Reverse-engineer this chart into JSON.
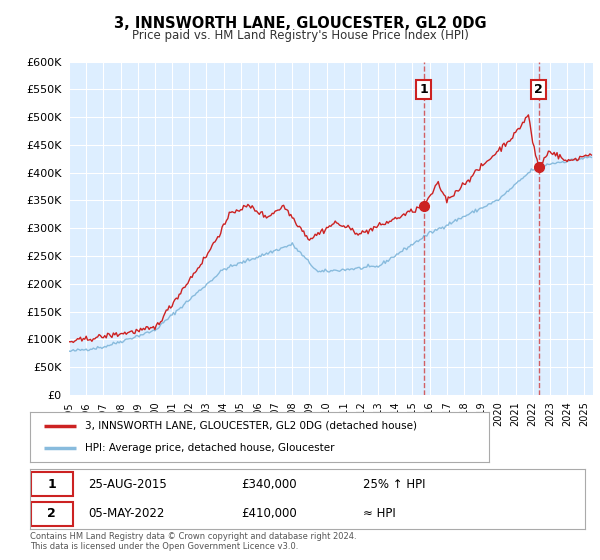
{
  "title": "3, INNSWORTH LANE, GLOUCESTER, GL2 0DG",
  "subtitle": "Price paid vs. HM Land Registry's House Price Index (HPI)",
  "ylim": [
    0,
    600000
  ],
  "yticks": [
    0,
    50000,
    100000,
    150000,
    200000,
    250000,
    300000,
    350000,
    400000,
    450000,
    500000,
    550000,
    600000
  ],
  "xlim_start": 1995.0,
  "xlim_end": 2025.5,
  "red_color": "#cc2222",
  "blue_color": "#88bbdd",
  "marker1_x": 2015.65,
  "marker1_y": 340000,
  "marker2_x": 2022.35,
  "marker2_y": 410000,
  "vline1_x": 2015.65,
  "vline2_x": 2022.35,
  "legend_label1": "3, INNSWORTH LANE, GLOUCESTER, GL2 0DG (detached house)",
  "legend_label2": "HPI: Average price, detached house, Gloucester",
  "ann1_num": "1",
  "ann2_num": "2",
  "ann_y": 550000,
  "table_row1": [
    "1",
    "25-AUG-2015",
    "£340,000",
    "25% ↑ HPI"
  ],
  "table_row2": [
    "2",
    "05-MAY-2022",
    "£410,000",
    "≈ HPI"
  ],
  "footnote1": "Contains HM Land Registry data © Crown copyright and database right 2024.",
  "footnote2": "This data is licensed under the Open Government Licence v3.0.",
  "fig_bg": "#ffffff",
  "plot_bg": "#ddeeff",
  "grid_color": "#ffffff"
}
